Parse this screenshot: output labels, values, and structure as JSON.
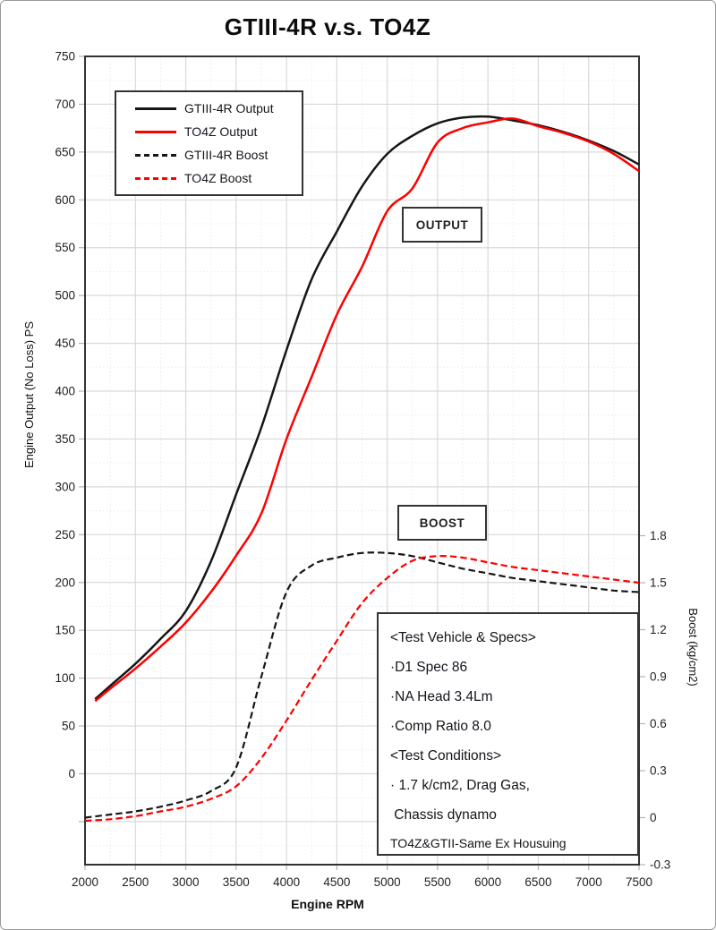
{
  "title": "GTIII-4R v.s. TO4Z",
  "colors": {
    "black_series": "#161616",
    "red_series": "#fe0000",
    "grid_major": "#d9d9d9",
    "grid_minor": "#ececec",
    "axis_border": "#333333",
    "tick_mark": "#b3b3b3",
    "tick_text": "#1f1f1f",
    "background": "#ffffff"
  },
  "labels": {
    "output_box": "OUTPUT",
    "boost_box": "BOOST"
  },
  "legend": {
    "items": [
      {
        "label": "GTIII-4R Output",
        "style": "solid",
        "color": "#161616"
      },
      {
        "label": "TO4Z Output",
        "style": "solid",
        "color": "#fe0000"
      },
      {
        "label": "GTIII-4R Boost",
        "style": "dashed",
        "color": "#161616"
      },
      {
        "label": "TO4Z Boost",
        "style": "dashed",
        "color": "#fe0000"
      }
    ]
  },
  "info_box": {
    "lines": [
      "<Test Vehicle & Specs>",
      "·D1 Spec 86",
      "·NA Head 3.4Lm",
      "·Comp Ratio 8.0",
      "<Test Conditions>",
      "· 1.7 k/cm2, Drag Gas,",
      " Chassis dynamo",
      "TO4Z&GTII-Same Ex Housuing"
    ]
  },
  "axes": {
    "x": {
      "title": "Engine RPM",
      "ticks": [
        2000,
        2500,
        3000,
        3500,
        4000,
        4500,
        5000,
        5500,
        6000,
        6500,
        7000,
        7500
      ],
      "range": [
        2000,
        7500
      ]
    },
    "left": {
      "title": "Engine Output (No Loss) PS",
      "ticks": [
        750,
        700,
        650,
        600,
        550,
        500,
        450,
        400,
        350,
        300,
        250,
        200,
        150,
        100,
        50,
        0
      ],
      "range": [
        -95,
        750
      ]
    },
    "right": {
      "title": "Boost (kg/cm2)",
      "tick_labels": [
        "1.8",
        "1.5",
        "1.2",
        "0.9",
        "0.6",
        "0.3",
        "0",
        "-0.3"
      ],
      "tick_values": [
        1.8,
        1.5,
        1.2,
        0.9,
        0.6,
        0.3,
        0,
        -0.3
      ],
      "range": [
        -0.3,
        1.8
      ]
    }
  },
  "chart_data": {
    "type": "line",
    "title": "GTIII-4R v.s. TO4Z",
    "xlabel": "Engine RPM",
    "ylabel_left": "Engine Output (No Loss) PS",
    "ylabel_right": "Boost (kg/cm2)",
    "xlim": [
      2000,
      7500
    ],
    "ylim_left": [
      -95,
      750
    ],
    "ylim_right_labeled": [
      -0.3,
      1.8
    ],
    "grid": true,
    "legend_position": "top-left",
    "annotations": [
      "OUTPUT",
      "BOOST"
    ],
    "series": [
      {
        "name": "GTIII-4R Output",
        "axis": "left",
        "style": "solid",
        "color": "#161616",
        "x": [
          2100,
          2250,
          2500,
          2750,
          3000,
          3250,
          3500,
          3750,
          4000,
          4250,
          4500,
          4750,
          5000,
          5250,
          5500,
          5750,
          6000,
          6250,
          6500,
          6750,
          7000,
          7250,
          7500
        ],
        "y": [
          78,
          92,
          115,
          141,
          170,
          222,
          292,
          362,
          443,
          517,
          567,
          614,
          648,
          667,
          680,
          686,
          687,
          683,
          678,
          671,
          662,
          651,
          637
        ]
      },
      {
        "name": "TO4Z Output",
        "axis": "left",
        "style": "solid",
        "color": "#fe0000",
        "x": [
          2100,
          2250,
          2500,
          2750,
          3000,
          3250,
          3500,
          3750,
          4000,
          4250,
          4500,
          4750,
          5000,
          5250,
          5500,
          5750,
          6000,
          6250,
          6500,
          6750,
          7000,
          7250,
          7500
        ],
        "y": [
          76,
          89,
          110,
          133,
          158,
          190,
          228,
          272,
          350,
          415,
          480,
          530,
          588,
          612,
          660,
          675,
          681,
          685,
          677,
          670,
          661,
          648,
          630
        ]
      },
      {
        "name": "GTIII-4R Boost",
        "axis": "right",
        "style": "dashed",
        "color": "#161616",
        "x": [
          2000,
          2250,
          2500,
          2750,
          3000,
          3250,
          3500,
          3750,
          4000,
          4250,
          4500,
          4750,
          5000,
          5250,
          5500,
          5750,
          6000,
          6250,
          6500,
          6750,
          7000,
          7250,
          7500
        ],
        "y": [
          0.0,
          0.02,
          0.04,
          0.07,
          0.11,
          0.17,
          0.32,
          0.9,
          1.44,
          1.61,
          1.66,
          1.69,
          1.69,
          1.67,
          1.63,
          1.59,
          1.56,
          1.53,
          1.51,
          1.49,
          1.47,
          1.45,
          1.44
        ]
      },
      {
        "name": "TO4Z Boost",
        "axis": "right",
        "style": "dashed",
        "color": "#fe0000",
        "x": [
          2000,
          2250,
          2500,
          2750,
          3000,
          3250,
          3500,
          3750,
          4000,
          4250,
          4500,
          4750,
          5000,
          5250,
          5500,
          5750,
          6000,
          6250,
          6500,
          6750,
          7000,
          7250,
          7500
        ],
        "y": [
          -0.02,
          -0.01,
          0.01,
          0.04,
          0.07,
          0.12,
          0.2,
          0.38,
          0.62,
          0.88,
          1.13,
          1.37,
          1.53,
          1.64,
          1.67,
          1.66,
          1.63,
          1.6,
          1.58,
          1.56,
          1.54,
          1.52,
          1.5
        ]
      }
    ]
  }
}
